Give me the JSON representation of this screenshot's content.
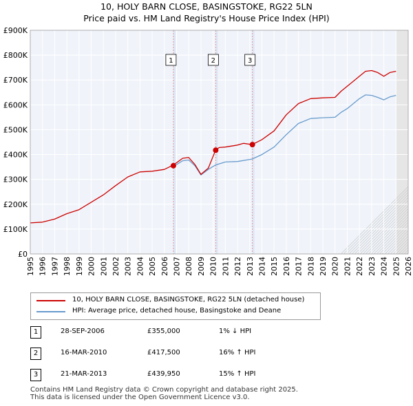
{
  "chart_data": {
    "type": "line",
    "title": "10, HOLY BARN CLOSE, BASINGSTOKE, RG22 5LN",
    "subtitle": "Price paid vs. HM Land Registry's House Price Index (HPI)",
    "xlim": [
      1995,
      2026
    ],
    "ylim": [
      0,
      900000
    ],
    "x_ticks": [
      "1995",
      "1996",
      "1997",
      "1998",
      "1999",
      "2000",
      "2001",
      "2002",
      "2003",
      "2004",
      "2005",
      "2006",
      "2007",
      "2008",
      "2009",
      "2010",
      "2011",
      "2012",
      "2013",
      "2014",
      "2015",
      "2016",
      "2017",
      "2018",
      "2019",
      "2020",
      "2021",
      "2022",
      "2023",
      "2024",
      "2025",
      "2026"
    ],
    "y_ticks": [
      {
        "value": 0,
        "label": "£0"
      },
      {
        "value": 100000,
        "label": "£100K"
      },
      {
        "value": 200000,
        "label": "£200K"
      },
      {
        "value": 300000,
        "label": "£300K"
      },
      {
        "value": 400000,
        "label": "£400K"
      },
      {
        "value": 500000,
        "label": "£500K"
      },
      {
        "value": 600000,
        "label": "£600K"
      },
      {
        "value": 700000,
        "label": "£700K"
      },
      {
        "value": 800000,
        "label": "£800K"
      },
      {
        "value": 900000,
        "label": "£900K"
      }
    ],
    "grid": true,
    "series": [
      {
        "name": "10, HOLY BARN CLOSE, BASINGSTOKE, RG22 5LN (detached house)",
        "color": "#cc0000",
        "points": [
          [
            1995.0,
            125000
          ],
          [
            1996.0,
            128000
          ],
          [
            1997.0,
            140000
          ],
          [
            1998.0,
            162000
          ],
          [
            1999.0,
            178000
          ],
          [
            2000.0,
            208000
          ],
          [
            2001.0,
            238000
          ],
          [
            2002.0,
            275000
          ],
          [
            2003.0,
            310000
          ],
          [
            2004.0,
            330000
          ],
          [
            2005.0,
            333000
          ],
          [
            2006.0,
            340000
          ],
          [
            2006.75,
            358000
          ],
          [
            2007.5,
            385000
          ],
          [
            2008.0,
            388000
          ],
          [
            2008.5,
            360000
          ],
          [
            2009.0,
            320000
          ],
          [
            2009.6,
            345000
          ],
          [
            2010.2,
            417500
          ],
          [
            2010.5,
            428000
          ],
          [
            2011.0,
            430000
          ],
          [
            2012.0,
            438000
          ],
          [
            2012.5,
            445000
          ],
          [
            2013.2,
            440000
          ],
          [
            2014.0,
            460000
          ],
          [
            2015.0,
            495000
          ],
          [
            2016.0,
            560000
          ],
          [
            2017.0,
            605000
          ],
          [
            2018.0,
            625000
          ],
          [
            2019.0,
            628000
          ],
          [
            2020.0,
            630000
          ],
          [
            2020.5,
            655000
          ],
          [
            2021.0,
            675000
          ],
          [
            2022.0,
            715000
          ],
          [
            2022.5,
            735000
          ],
          [
            2023.0,
            738000
          ],
          [
            2023.5,
            730000
          ],
          [
            2024.0,
            715000
          ],
          [
            2024.5,
            730000
          ],
          [
            2025.0,
            735000
          ]
        ]
      },
      {
        "name": "HPI: Average price, detached house, Basingstoke and Deane",
        "color": "#6699cc",
        "points": [
          [
            2006.75,
            352000
          ],
          [
            2007.5,
            375000
          ],
          [
            2008.0,
            378000
          ],
          [
            2008.5,
            355000
          ],
          [
            2009.0,
            318000
          ],
          [
            2009.6,
            340000
          ],
          [
            2010.2,
            358000
          ],
          [
            2011.0,
            370000
          ],
          [
            2012.0,
            372000
          ],
          [
            2013.2,
            382000
          ],
          [
            2014.0,
            400000
          ],
          [
            2015.0,
            430000
          ],
          [
            2016.0,
            480000
          ],
          [
            2017.0,
            525000
          ],
          [
            2018.0,
            545000
          ],
          [
            2019.0,
            548000
          ],
          [
            2020.0,
            550000
          ],
          [
            2020.5,
            570000
          ],
          [
            2021.0,
            585000
          ],
          [
            2022.0,
            625000
          ],
          [
            2022.5,
            640000
          ],
          [
            2023.0,
            638000
          ],
          [
            2023.5,
            630000
          ],
          [
            2024.0,
            620000
          ],
          [
            2024.5,
            632000
          ],
          [
            2025.0,
            638000
          ]
        ]
      }
    ],
    "sales": [
      {
        "label": "1",
        "x": 2006.74,
        "y": 355000
      },
      {
        "label": "2",
        "x": 2010.21,
        "y": 417500
      },
      {
        "label": "3",
        "x": 2013.22,
        "y": 439950
      }
    ],
    "forecast_start": 2025.0
  },
  "legend": [
    {
      "label": "10, HOLY BARN CLOSE, BASINGSTOKE, RG22 5LN (detached house)",
      "color": "#cc0000"
    },
    {
      "label": "HPI: Average price, detached house, Basingstoke and Deane",
      "color": "#6699cc"
    }
  ],
  "transactions": [
    {
      "num": "1",
      "date": "28-SEP-2006",
      "price": "£355,000",
      "hpi": "1% ↓ HPI"
    },
    {
      "num": "2",
      "date": "16-MAR-2010",
      "price": "£417,500",
      "hpi": "16% ↑ HPI"
    },
    {
      "num": "3",
      "date": "21-MAR-2013",
      "price": "£439,950",
      "hpi": "15% ↑ HPI"
    }
  ],
  "footer": {
    "line1": "Contains HM Land Registry data © Crown copyright and database right 2025.",
    "line2": "This data is licensed under the Open Government Licence v3.0."
  }
}
